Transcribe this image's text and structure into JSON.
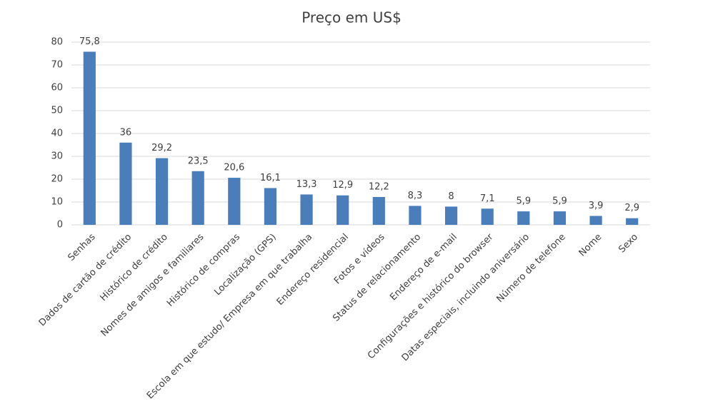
{
  "chart_data": {
    "type": "bar",
    "title": "Preço em US$",
    "categories": [
      "Senhas",
      "Dados de cartão de crédito",
      "Histórico de crédito",
      "Nomes de amigos e familiares",
      "Histórico de compras",
      "Localização (GPS)",
      "Escola em que estudo/ Empresa em que trabalha",
      "Endereço residencial",
      "Fotos e vídeos",
      "Status de relacionamento",
      "Endereço de e-mail",
      "Configurações e histórico do browser",
      "Datas especiais, incluindo aniversário",
      "Número de telefone",
      "Nome",
      "Sexo"
    ],
    "values": [
      75.8,
      36,
      29.2,
      23.5,
      20.6,
      16.1,
      13.3,
      12.9,
      12.2,
      8.3,
      8,
      7.1,
      5.9,
      5.9,
      3.9,
      2.9
    ],
    "value_labels": [
      "75,8",
      "36",
      "29,2",
      "23,5",
      "20,6",
      "16,1",
      "13,3",
      "12,9",
      "12,2",
      "8,3",
      "8",
      "7,1",
      "5,9",
      "5,9",
      "3,9",
      "2,9"
    ],
    "color": "#4a7ebb",
    "ylim": [
      0,
      80
    ],
    "yticks": [
      0,
      10,
      20,
      30,
      40,
      50,
      60,
      70,
      80
    ],
    "grid": true
  }
}
